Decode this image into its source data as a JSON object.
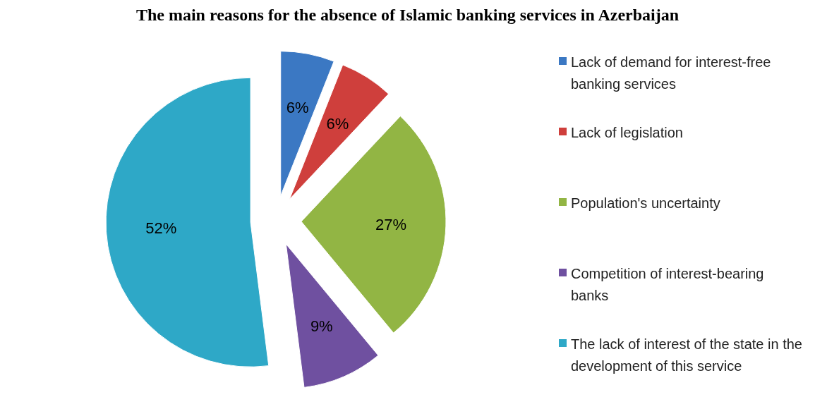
{
  "chart_data": {
    "type": "pie",
    "title": "The main reasons for the absence of Islamic banking services in Azerbaijan",
    "categories": [
      "Lack of demand for interest-free banking services",
      "Lack of legislation",
      "Population's uncertainty",
      "Competition of interest-bearing banks",
      "The lack of interest of the state in the development of this service"
    ],
    "values": [
      6,
      6,
      27,
      9,
      52
    ],
    "colors": [
      "#3b78c3",
      "#cf3f3c",
      "#92b544",
      "#6f50a0",
      "#2ea8c7"
    ],
    "value_labels": [
      "6%",
      "6%",
      "27%",
      "9%",
      "52%"
    ],
    "legend": "right"
  }
}
